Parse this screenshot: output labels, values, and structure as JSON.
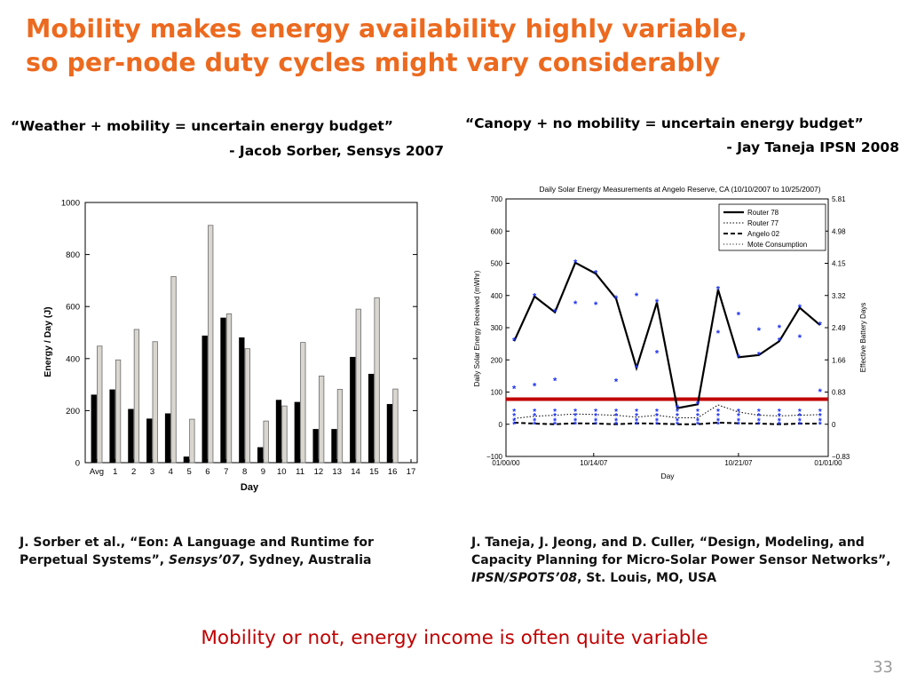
{
  "slide": {
    "title_line1": "Mobility makes energy availability highly variable,",
    "title_line2": "so per-node duty cycles might vary considerably",
    "left_quote": "“Weather + mobility = uncertain energy budget”",
    "left_attribution": "- Jacob Sorber, Sensys 2007",
    "right_quote": "“Canopy + no mobility = uncertain energy budget”",
    "right_attribution": "- Jay Taneja IPSN 2008",
    "left_ref": {
      "pre": "J. Sorber et al., “Eon: A Language and Runtime for Perpetual Systems”, ",
      "venue": "Sensys’07",
      "post": ", Sydney, Australia"
    },
    "right_ref": {
      "pre": "J. Taneja, J. Jeong, and D. Culler, “Design, Modeling, and Capacity Planning for Micro-Solar Power Sensor Networks”, ",
      "venue": "IPSN/SPOTS’08",
      "post": ", St. Louis, MO, USA"
    },
    "bottom_message": "Mobility or not, energy income is often quite variable",
    "page_number": "33",
    "colors": {
      "title": "#ec6a1f",
      "message": "#c00000",
      "threshold": "#c00000",
      "mote": "#1a2ff0"
    }
  },
  "chart_data": [
    {
      "type": "bar",
      "title": "",
      "xlabel": "Day",
      "ylabel": "Energy / Day (J)",
      "ylim": [
        0,
        1000
      ],
      "yticks": [
        "0",
        "200",
        "400",
        "600",
        "800",
        "1000"
      ],
      "categories": [
        "Avg",
        "1",
        "2",
        "3",
        "4",
        "5",
        "6",
        "7",
        "8",
        "9",
        "10",
        "11",
        "12",
        "13",
        "14",
        "15",
        "16",
        "17"
      ],
      "series": [
        {
          "values": [
            260,
            280,
            205,
            168,
            188,
            22,
            487,
            556,
            480,
            58,
            240,
            232,
            128,
            128,
            405,
            340,
            224,
            null
          ]
        },
        {
          "values": [
            448,
            395,
            512,
            465,
            715,
            167,
            912,
            572,
            438,
            160,
            218,
            462,
            333,
            282,
            590,
            634,
            283,
            null
          ]
        }
      ]
    },
    {
      "type": "line",
      "title": "Daily Solar Energy Measurements at Angelo Reserve, CA (10/10/2007 to 10/25/2007)",
      "xlabel": "Day",
      "ylabel": "Daily Solar Energy Received (mWhr)",
      "ylabel_right": "Effective Battery Days",
      "ylim": [
        -100,
        700
      ],
      "yticks": [
        "−100",
        "0",
        "100",
        "200",
        "300",
        "400",
        "500",
        "600",
        "700"
      ],
      "yticks_right": [
        "−0.83",
        "0",
        "0.83",
        "1.66",
        "2.49",
        "3.32",
        "4.15",
        "4.98",
        "5.81"
      ],
      "xticks": [
        "01/00/00",
        "10/14/07",
        "10/21/07",
        "01/01/00"
      ],
      "x": [
        1,
        2,
        3,
        4,
        5,
        6,
        7,
        8,
        9,
        10,
        11,
        12,
        13,
        14,
        15,
        16
      ],
      "legend_position": "top-right",
      "series": [
        {
          "name": "Router 78",
          "values": [
            258,
            397,
            348,
            502,
            468,
            390,
            175,
            378,
            50,
            62,
            418,
            208,
            215,
            258,
            362,
            308
          ]
        },
        {
          "name": "Router 77",
          "values": [
            18,
            25,
            28,
            32,
            30,
            28,
            22,
            28,
            20,
            20,
            60,
            38,
            28,
            26,
            28,
            30
          ]
        },
        {
          "name": "Angelo 02",
          "values": [
            5,
            2,
            0,
            3,
            2,
            0,
            3,
            2,
            0,
            0,
            5,
            3,
            2,
            0,
            2,
            2
          ]
        },
        {
          "name": "Mote Consumption",
          "values": [
            78,
            78,
            78,
            78,
            78,
            78,
            78,
            78,
            78,
            78,
            78,
            78,
            78,
            78,
            78,
            78
          ]
        }
      ],
      "mote_markers": [
        110,
        118,
        135,
        373,
        371,
        132,
        398,
        220,
        null,
        null,
        282,
        338,
        290,
        298,
        268,
        100
      ],
      "threshold": 78
    }
  ]
}
